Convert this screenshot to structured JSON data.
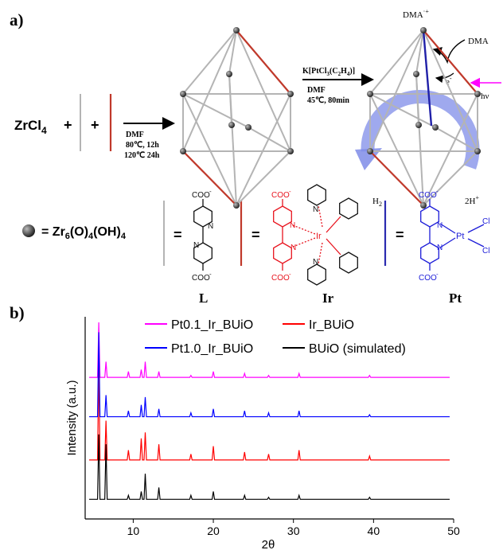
{
  "panel_a": {
    "label": "a)",
    "reactant": {
      "main": "ZrCl",
      "sub": "4"
    },
    "plus": [
      "+",
      "+"
    ],
    "step1": {
      "solvent": "DMF",
      "conditions": [
        "80℃, 12h",
        "120℃ 24h"
      ]
    },
    "step2": {
      "reagent": [
        "K[PtCl",
        "3",
        "(C",
        "2",
        "H",
        "4",
        ")]"
      ],
      "solvent": "DMF",
      "conditions": "45℃, 80min"
    },
    "photo": {
      "donor_radical": [
        "DMA",
        "·+"
      ],
      "donor": "DMA",
      "electron": [
        "e",
        "-"
      ],
      "light": "hν",
      "h2": [
        "H",
        "2"
      ],
      "protons": [
        "2H",
        "+"
      ]
    },
    "node": [
      "= Zr",
      "6",
      "(O)",
      "4",
      "(OH)",
      "4"
    ],
    "equals": [
      "=",
      "=",
      "="
    ],
    "ligand_L": [
      "COO",
      "-",
      "N",
      "N",
      "COO",
      "-"
    ],
    "ligand_Ir": [
      "COO",
      "-",
      "N",
      "Ir",
      "N",
      "N",
      "N",
      "COO",
      "-"
    ],
    "ligand_Pt": [
      "COO",
      "-",
      "N",
      "Pt",
      "Cl",
      "N",
      "Cl",
      "COO",
      "-"
    ],
    "names": [
      "L",
      "Ir",
      "Pt"
    ]
  },
  "panel_b_label": "b)",
  "chart_data": {
    "type": "line",
    "x_label": "2θ",
    "y_label": "Intensity (a.u.)",
    "x": [
      4.5,
      5.55,
      5.7,
      5.85,
      6.45,
      6.6,
      6.75,
      9.25,
      9.4,
      9.55,
      10.85,
      11,
      11.15,
      11.35,
      11.5,
      11.65,
      13.05,
      13.2,
      13.35,
      17.05,
      17.2,
      17.35,
      19.85,
      20,
      20.15,
      23.75,
      23.9,
      24.05,
      26.75,
      26.9,
      27.05,
      30.55,
      30.7,
      30.85,
      39.35,
      39.5,
      39.65,
      49.5
    ],
    "series": [
      {
        "name": "Pt0.1_Ir_BUiO",
        "color": "#ff00ff",
        "values": [
          72,
          72,
          100,
          72,
          72,
          80,
          72,
          72,
          75,
          72,
          72,
          76,
          72,
          72,
          80,
          72,
          72,
          75,
          72,
          72,
          73,
          72,
          72,
          75,
          72,
          72,
          74,
          72,
          72,
          73,
          72,
          72,
          74,
          72,
          72,
          73,
          72,
          72
        ]
      },
      {
        "name": "Ir_BUiO",
        "color": "#ff0000",
        "values": [
          30,
          30,
          80,
          30,
          30,
          50,
          30,
          30,
          35,
          30,
          30,
          41,
          30,
          30,
          44,
          30,
          30,
          38,
          30,
          30,
          33,
          30,
          30,
          37,
          30,
          30,
          34,
          30,
          30,
          33,
          30,
          30,
          35,
          30,
          30,
          32,
          30,
          30
        ]
      },
      {
        "name": "Pt1.0_Ir_BUiO",
        "color": "#0000ff",
        "values": [
          52,
          52,
          95,
          52,
          52,
          63,
          52,
          52,
          55,
          52,
          52,
          58,
          52,
          52,
          62,
          52,
          52,
          56,
          52,
          52,
          54,
          52,
          52,
          56,
          52,
          52,
          55,
          52,
          52,
          54,
          52,
          52,
          55,
          52,
          52,
          53,
          52,
          52
        ]
      },
      {
        "name": "BUiO (simulated)",
        "color": "#000000",
        "values": [
          10,
          10,
          43,
          10,
          10,
          38,
          10,
          10,
          12,
          10,
          10,
          14,
          10,
          10,
          23,
          10,
          10,
          16,
          10,
          10,
          12,
          10,
          10,
          14,
          10,
          10,
          12,
          10,
          10,
          11,
          10,
          10,
          12,
          10,
          10,
          11,
          10,
          10
        ]
      }
    ],
    "xlim": [
      4,
      50
    ],
    "xticks": [
      10,
      20,
      30,
      40,
      50
    ],
    "ylim": [
      0,
      100
    ]
  }
}
